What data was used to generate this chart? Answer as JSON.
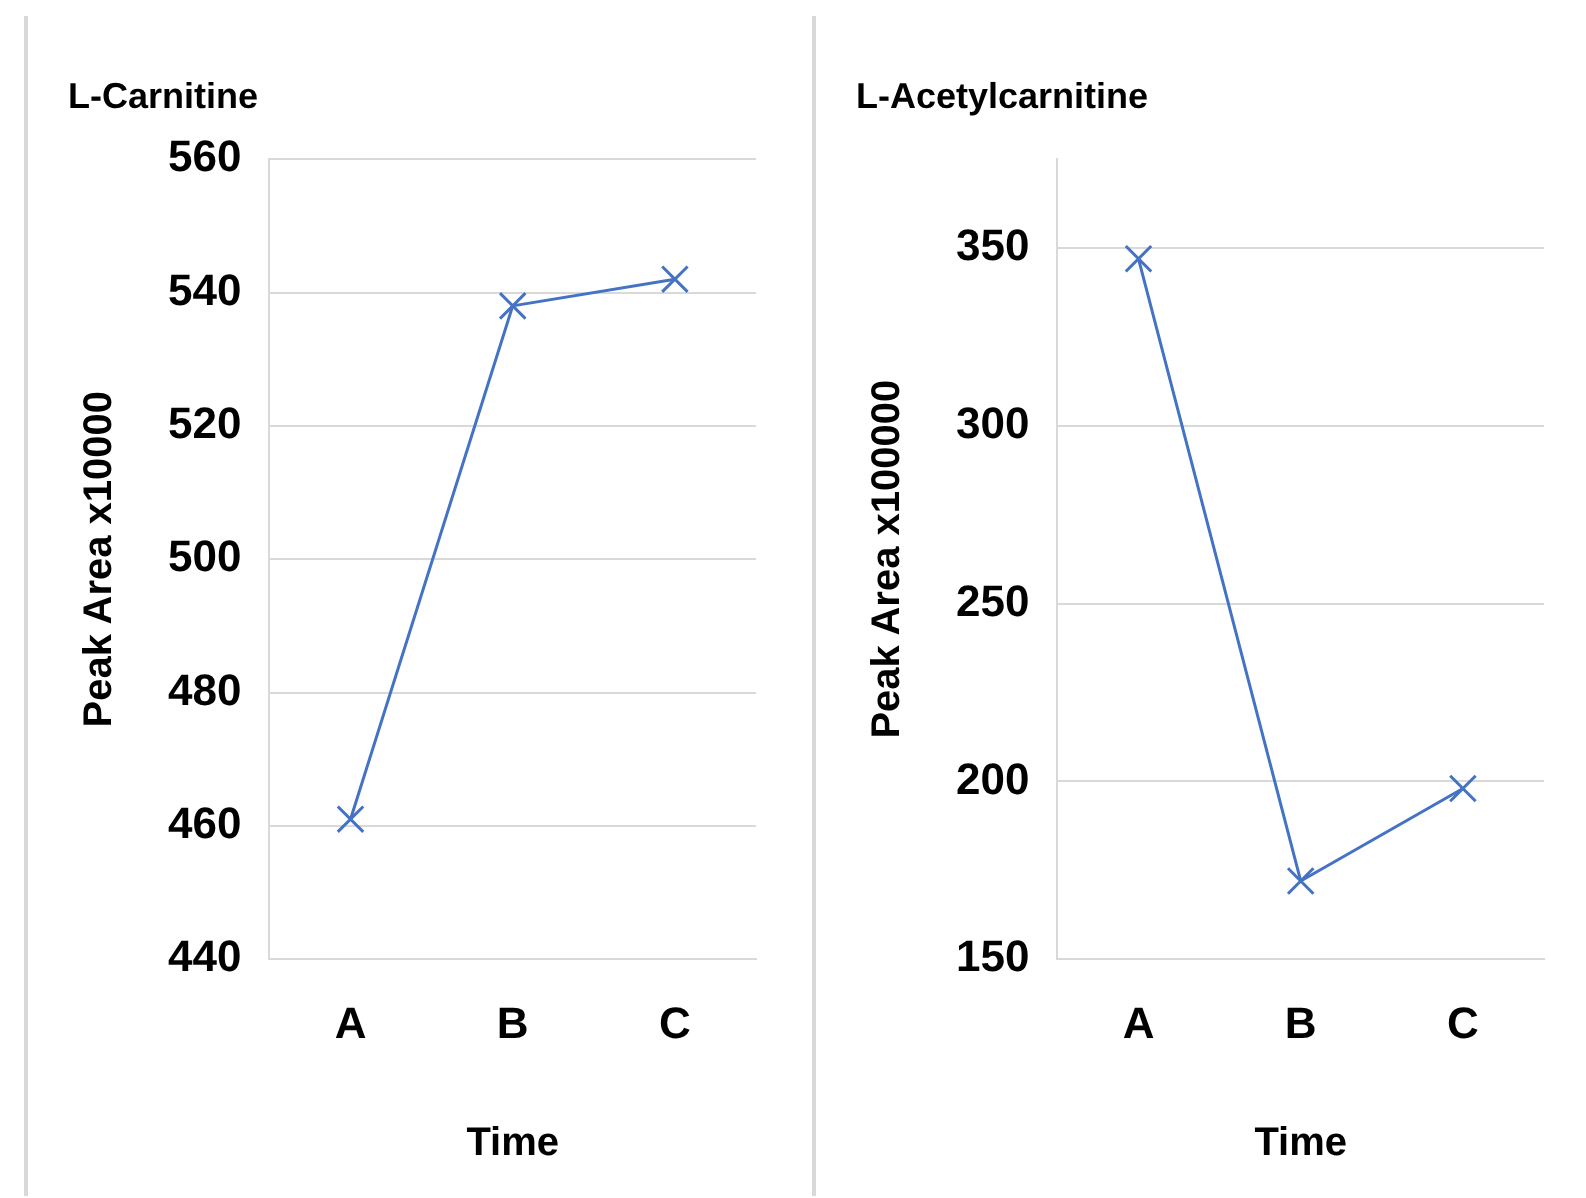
{
  "chart_data": [
    {
      "type": "line",
      "title": "L-Carnitine",
      "xlabel": "Time",
      "ylabel": "Peak Area x10000",
      "categories": [
        "A",
        "B",
        "C"
      ],
      "series": [
        {
          "color": "#4472c4",
          "values": [
            461,
            538,
            542
          ]
        }
      ],
      "ylim": [
        440,
        560
      ],
      "yticks": [
        440,
        460,
        480,
        500,
        520,
        540,
        560
      ],
      "grid": "y",
      "marker": "cross"
    },
    {
      "type": "line",
      "title": "L-Acetylcarnitine",
      "xlabel": "Time",
      "ylabel": "Peak Area x100000",
      "categories": [
        "A",
        "B",
        "C"
      ],
      "series": [
        {
          "color": "#4472c4",
          "values": [
            347,
            172,
            198
          ]
        }
      ],
      "ylim": [
        150,
        375
      ],
      "yticks": [
        150,
        200,
        250,
        300,
        350
      ],
      "grid": "y",
      "marker": "cross"
    }
  ]
}
